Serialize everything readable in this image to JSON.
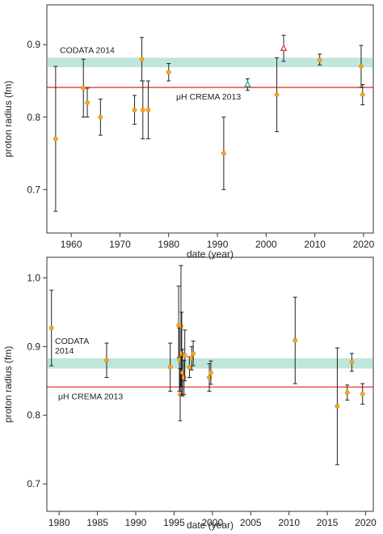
{
  "colors": {
    "point": "#f5a623",
    "point_stroke": "#d88a0c",
    "muonic_h_line": "#e53935",
    "codata_band": "#bfe6db",
    "open_triangle_red": "#e53935",
    "open_triangle_teal": "#2aa198",
    "error_bar": "#222222",
    "axis": "#333333"
  },
  "chart_data": [
    {
      "type": "scatter",
      "xlabel": "date (year)",
      "ylabel": "proton radius (fm)",
      "xlim": [
        1955,
        2022
      ],
      "ylim": [
        0.64,
        0.955
      ],
      "x_ticks": [
        1960,
        1970,
        1980,
        1990,
        2000,
        2010,
        2020
      ],
      "y_ticks": [
        0.7,
        0.8,
        0.9
      ],
      "y_tick_labels": [
        "0.7",
        "0.8",
        "0.9"
      ],
      "codata_band": {
        "label": "CODATA 2014",
        "low": 0.869,
        "high": 0.882
      },
      "muonic_line": {
        "label": "μH CREMA 2013",
        "value": 0.841
      },
      "series": [
        {
          "marker": "circle",
          "points": [
            {
              "x": 1956.8,
              "y": 0.77,
              "lo": 0.67,
              "hi": 0.87
            },
            {
              "x": 1962.5,
              "y": 0.84,
              "lo": 0.8,
              "hi": 0.88
            },
            {
              "x": 1963.3,
              "y": 0.82,
              "lo": 0.8,
              "hi": 0.84
            },
            {
              "x": 1966.0,
              "y": 0.8,
              "lo": 0.775,
              "hi": 0.825
            },
            {
              "x": 1973.0,
              "y": 0.81,
              "lo": 0.79,
              "hi": 0.83
            },
            {
              "x": 1974.5,
              "y": 0.88,
              "lo": 0.85,
              "hi": 0.91
            },
            {
              "x": 1974.7,
              "y": 0.81,
              "lo": 0.77,
              "hi": 0.85
            },
            {
              "x": 1975.8,
              "y": 0.81,
              "lo": 0.77,
              "hi": 0.85
            },
            {
              "x": 1980.0,
              "y": 0.862,
              "lo": 0.85,
              "hi": 0.874
            },
            {
              "x": 1991.3,
              "y": 0.75,
              "lo": 0.7,
              "hi": 0.8
            },
            {
              "x": 2002.2,
              "y": 0.831,
              "lo": 0.78,
              "hi": 0.882
            },
            {
              "x": 2011.0,
              "y": 0.879,
              "lo": 0.872,
              "hi": 0.887
            },
            {
              "x": 2019.5,
              "y": 0.87,
              "lo": 0.841,
              "hi": 0.899
            },
            {
              "x": 2019.8,
              "y": 0.831,
              "lo": 0.817,
              "hi": 0.845
            }
          ]
        },
        {
          "marker": "open-triangle-teal",
          "points": [
            {
              "x": 1996.2,
              "y": 0.845,
              "lo": 0.837,
              "hi": 0.853
            }
          ]
        },
        {
          "marker": "open-triangle-red",
          "points": [
            {
              "x": 2003.6,
              "y": 0.895,
              "lo": 0.877,
              "hi": 0.913
            }
          ]
        }
      ]
    },
    {
      "type": "scatter",
      "xlabel": "date (year)",
      "ylabel": "proton radius (fm)",
      "xlim": [
        1978.4,
        2021.0
      ],
      "ylim": [
        0.66,
        1.03
      ],
      "x_ticks": [
        1980,
        1985,
        1990,
        1995,
        2000,
        2005,
        2010,
        2015,
        2020
      ],
      "y_ticks": [
        0.7,
        0.8,
        0.9,
        1.0
      ],
      "y_tick_labels": [
        "0.7",
        "0.8",
        "0.9",
        "1.0"
      ],
      "codata_band": {
        "label_line1": "CODATA",
        "label_line2": "2014",
        "low": 0.868,
        "high": 0.883
      },
      "muonic_line": {
        "label": "μH CREMA 2013",
        "value": 0.841
      },
      "series": [
        {
          "marker": "circle",
          "points": [
            {
              "x": 1979.0,
              "y": 0.927,
              "lo": 0.872,
              "hi": 0.982
            },
            {
              "x": 1986.2,
              "y": 0.88,
              "lo": 0.855,
              "hi": 0.905
            },
            {
              "x": 1994.5,
              "y": 0.87,
              "lo": 0.835,
              "hi": 0.905
            },
            {
              "x": 1995.6,
              "y": 0.931,
              "lo": 0.884,
              "hi": 0.988
            },
            {
              "x": 1995.7,
              "y": 0.881,
              "lo": 0.835,
              "hi": 0.927
            },
            {
              "x": 1995.8,
              "y": 0.83,
              "lo": 0.792,
              "hi": 0.868
            },
            {
              "x": 1995.9,
              "y": 0.93,
              "lo": 0.842,
              "hi": 1.018
            },
            {
              "x": 1996.0,
              "y": 0.89,
              "lo": 0.83,
              "hi": 0.95
            },
            {
              "x": 1996.1,
              "y": 0.862,
              "lo": 0.828,
              "hi": 0.896
            },
            {
              "x": 1996.3,
              "y": 0.855,
              "lo": 0.83,
              "hi": 0.88
            },
            {
              "x": 1996.4,
              "y": 0.887,
              "lo": 0.85,
              "hi": 0.924
            },
            {
              "x": 1997.0,
              "y": 0.87,
              "lo": 0.855,
              "hi": 0.885
            },
            {
              "x": 1997.3,
              "y": 0.883,
              "lo": 0.866,
              "hi": 0.9
            },
            {
              "x": 1997.5,
              "y": 0.89,
              "lo": 0.872,
              "hi": 0.908
            },
            {
              "x": 1999.6,
              "y": 0.855,
              "lo": 0.835,
              "hi": 0.875
            },
            {
              "x": 1999.8,
              "y": 0.862,
              "lo": 0.845,
              "hi": 0.879
            },
            {
              "x": 2010.8,
              "y": 0.909,
              "lo": 0.846,
              "hi": 0.972
            },
            {
              "x": 2016.3,
              "y": 0.813,
              "lo": 0.728,
              "hi": 0.898
            },
            {
              "x": 2017.6,
              "y": 0.833,
              "lo": 0.822,
              "hi": 0.844
            },
            {
              "x": 2018.2,
              "y": 0.877,
              "lo": 0.864,
              "hi": 0.89
            },
            {
              "x": 2019.6,
              "y": 0.831,
              "lo": 0.816,
              "hi": 0.846
            }
          ]
        }
      ]
    }
  ]
}
